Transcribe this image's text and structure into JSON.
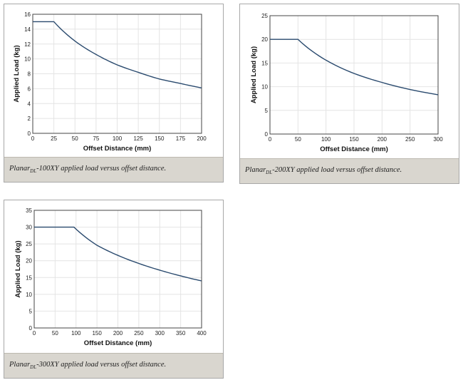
{
  "chart_data": [
    {
      "type": "line",
      "xlabel": "Offset Distance (mm)",
      "ylabel": "Applied Load (kg)",
      "xlim": [
        0,
        200
      ],
      "ylim": [
        0,
        16
      ],
      "xticks": [
        0,
        25,
        50,
        75,
        100,
        125,
        150,
        175,
        200
      ],
      "yticks": [
        0,
        2,
        4,
        6,
        8,
        10,
        12,
        14,
        16
      ],
      "grid": true,
      "x": [
        0,
        25,
        50,
        75,
        100,
        125,
        150,
        175,
        200
      ],
      "y": [
        15,
        15,
        12.4,
        10.6,
        9.2,
        8.2,
        7.3,
        6.7,
        6.1
      ],
      "caption": {
        "prefix": "Planar",
        "sub": "DL",
        "suffix": "-100XY applied load versus offset distance."
      }
    },
    {
      "type": "line",
      "xlabel": "Offset Distance (mm)",
      "ylabel": "Applied Load (kg)",
      "xlim": [
        0,
        300
      ],
      "ylim": [
        0,
        25
      ],
      "xticks": [
        0,
        50,
        100,
        150,
        200,
        250,
        300
      ],
      "yticks": [
        0,
        5,
        10,
        15,
        20,
        25
      ],
      "grid": true,
      "x": [
        0,
        50,
        100,
        150,
        200,
        250,
        300
      ],
      "y": [
        20,
        20,
        15.6,
        12.8,
        10.9,
        9.4,
        8.3
      ],
      "caption": {
        "prefix": "Planar",
        "sub": "DL",
        "suffix": "-200XY applied load versus offset distance."
      }
    },
    {
      "type": "line",
      "xlabel": "Offset Distance (mm)",
      "ylabel": "Applied Load (kg)",
      "xlim": [
        0,
        400
      ],
      "ylim": [
        0,
        35
      ],
      "xticks": [
        0,
        50,
        100,
        150,
        200,
        250,
        300,
        350,
        400
      ],
      "yticks": [
        0,
        5,
        10,
        15,
        20,
        25,
        30,
        35
      ],
      "grid": true,
      "x": [
        0,
        50,
        95,
        150,
        200,
        250,
        300,
        350,
        400
      ],
      "y": [
        30,
        30,
        30,
        24.6,
        21.6,
        19.2,
        17.2,
        15.5,
        14
      ],
      "caption": {
        "prefix": "Planar",
        "sub": "DL",
        "suffix": "-300XY applied load versus offset distance."
      }
    }
  ],
  "colors": {
    "line": "#2a4a6e",
    "grid": "#e4e4e4",
    "caption_bg": "#d9d6cf"
  }
}
